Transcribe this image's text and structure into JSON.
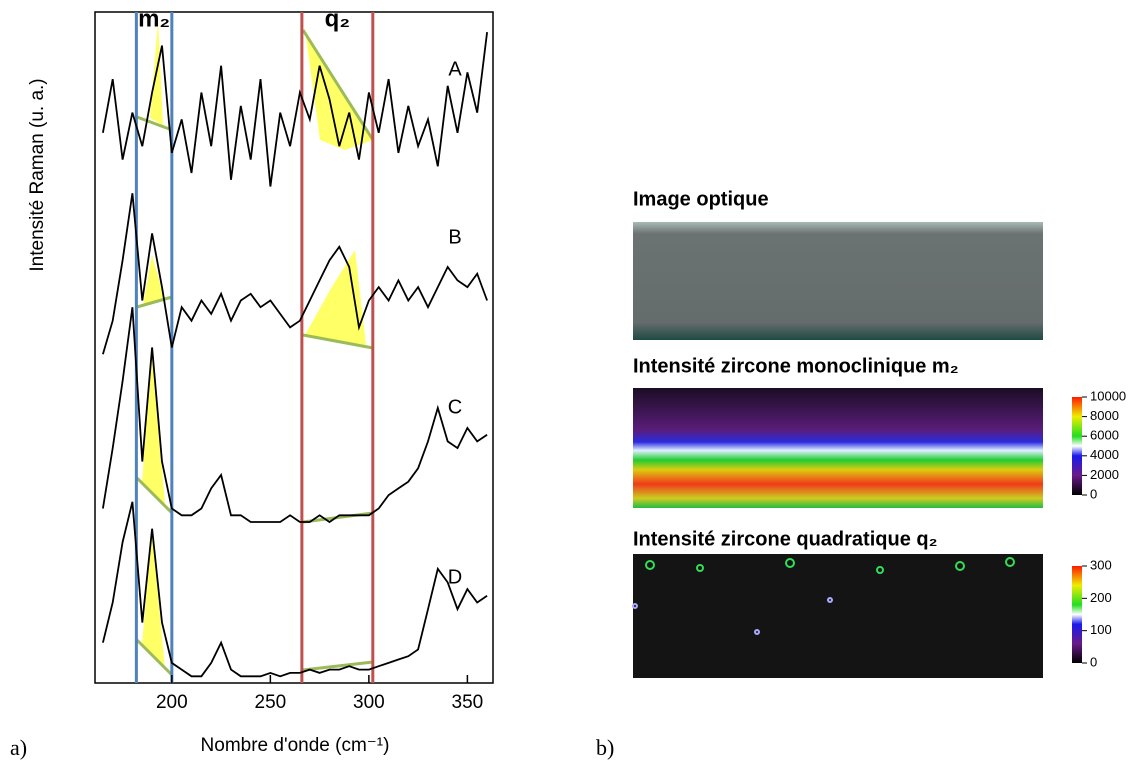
{
  "panel_labels": [
    "a)",
    "b)"
  ],
  "chart_data": [
    {
      "type": "line",
      "x_label": "Nombre d'onde (cm⁻¹)",
      "y_label": "Intensité Raman (u. a.)",
      "x": [
        165,
        170,
        175,
        180,
        185,
        190,
        195,
        200,
        205,
        210,
        215,
        220,
        225,
        230,
        235,
        240,
        245,
        250,
        255,
        260,
        265,
        270,
        275,
        280,
        285,
        290,
        295,
        300,
        305,
        310,
        315,
        320,
        325,
        330,
        335,
        340,
        345,
        350,
        355,
        360
      ],
      "xlim": [
        161,
        363
      ],
      "xticks": [
        200,
        250,
        300,
        350
      ],
      "ylim": [
        0,
        100
      ],
      "bands": [
        {
          "label": "m₂",
          "range": [
            182,
            200
          ],
          "color": "#4f81bd"
        },
        {
          "label": "q₂",
          "range": [
            266,
            302
          ],
          "color": "#c0504d"
        }
      ],
      "series": [
        {
          "name": "A",
          "color": "#000000",
          "values": [
            82,
            90,
            78,
            85,
            80,
            88,
            95,
            79,
            84,
            76,
            88,
            80,
            92,
            75,
            86,
            78,
            90,
            74,
            85,
            80,
            88,
            84,
            92,
            87,
            80,
            85,
            78,
            88,
            82,
            90,
            79,
            86,
            80,
            84,
            77,
            89,
            82,
            91,
            85,
            97
          ]
        },
        {
          "name": "B",
          "color": "#000000",
          "values": [
            49,
            54,
            63,
            73,
            57,
            67,
            59,
            50,
            56,
            54,
            57,
            55,
            58,
            54,
            57,
            58,
            56,
            57,
            55,
            53,
            54,
            57,
            60,
            63,
            65,
            62,
            53,
            57,
            59,
            57,
            60,
            57,
            59,
            56,
            59,
            62,
            60,
            59,
            61,
            57
          ]
        },
        {
          "name": "C",
          "color": "#000000",
          "values": [
            26,
            35,
            45,
            56,
            33,
            50,
            33,
            26,
            25,
            25,
            26,
            29,
            31,
            25,
            25,
            24,
            24,
            24,
            24,
            25,
            24,
            24,
            25,
            24,
            25,
            25,
            25,
            25,
            26,
            28,
            29,
            30,
            32,
            36,
            41,
            36,
            35,
            38,
            36,
            37
          ]
        },
        {
          "name": "D",
          "color": "#000000",
          "values": [
            6,
            12,
            21,
            27,
            9,
            23,
            9,
            3,
            2,
            1,
            1,
            3,
            6,
            2,
            1,
            1,
            1,
            1.5,
            1,
            1.5,
            1.5,
            2,
            1.5,
            2,
            2,
            2.5,
            2,
            2,
            2.5,
            3,
            3.5,
            4,
            5,
            11,
            17,
            15,
            11,
            14,
            12,
            13
          ]
        }
      ]
    },
    {
      "type": "image",
      "title": "Image optique"
    },
    {
      "type": "heatmap",
      "title": "Intensité zircone monoclinique m₂",
      "zlim": [
        0,
        10000
      ],
      "zticks": [
        0,
        2000,
        4000,
        6000,
        8000,
        10000
      ]
    },
    {
      "type": "heatmap",
      "title": "Intensité zircone quadratique q₂",
      "zlim": [
        0,
        300
      ],
      "zticks": [
        0,
        100,
        200,
        300
      ]
    }
  ]
}
